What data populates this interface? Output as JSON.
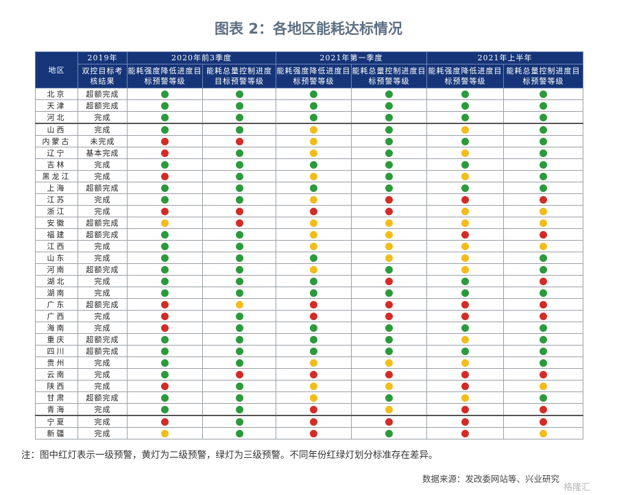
{
  "title": "图表 2：各地区能耗达标情况",
  "colors": {
    "red": "#d32c26",
    "yellow": "#f2bc1b",
    "green": "#2b9a3b",
    "header_bg": "#163578"
  },
  "header": {
    "region": "地区",
    "y2019": "2019年",
    "y2019_sub": "双控目标考核结果",
    "groups": [
      "2020年前3季度",
      "2021年第一季度",
      "2021年上半年"
    ],
    "sub_intensity": "能耗强度降低进度目标预警等级",
    "sub_total": "能耗总量控制进度目标预警等级"
  },
  "chart_data": {
    "type": "table",
    "columns": [
      "地区",
      "2019年双控目标考核结果",
      "2020年前3季度-能耗强度降低进度目标预警等级",
      "2020年前3季度-能耗总量控制进度目标预警等级",
      "2021年第一季度-能耗强度降低进度目标预警等级",
      "2021年第一季度-能耗总量控制进度目标预警等级",
      "2021年上半年-能耗强度降低进度目标预警等级",
      "2021年上半年-能耗总量控制进度目标预警等级"
    ],
    "legend": {
      "r": "红灯（一级预警）",
      "y": "黄灯（二级预警）",
      "g": "绿灯（三级预警）"
    },
    "rows": [
      {
        "region": "北京",
        "result": "超额完成",
        "levels": [
          "g",
          "g",
          "g",
          "g",
          "g",
          "g"
        ]
      },
      {
        "region": "天津",
        "result": "超额完成",
        "levels": [
          "g",
          "g",
          "g",
          "g",
          "g",
          "g"
        ]
      },
      {
        "region": "河北",
        "result": "完成",
        "levels": [
          "g",
          "g",
          "g",
          "g",
          "g",
          "g"
        ]
      },
      {
        "region": "山西",
        "result": "完成",
        "levels": [
          "g",
          "g",
          "y",
          "g",
          "y",
          "g"
        ]
      },
      {
        "region": "内蒙古",
        "result": "未完成",
        "levels": [
          "r",
          "r",
          "y",
          "g",
          "g",
          "g"
        ]
      },
      {
        "region": "辽宁",
        "result": "基本完成",
        "levels": [
          "r",
          "g",
          "y",
          "g",
          "y",
          "g"
        ]
      },
      {
        "region": "吉林",
        "result": "完成",
        "levels": [
          "g",
          "g",
          "g",
          "g",
          "g",
          "g"
        ]
      },
      {
        "region": "黑龙江",
        "result": "完成",
        "levels": [
          "r",
          "g",
          "y",
          "g",
          "y",
          "g"
        ]
      },
      {
        "region": "上海",
        "result": "超额完成",
        "levels": [
          "g",
          "g",
          "g",
          "g",
          "g",
          "g"
        ]
      },
      {
        "region": "江苏",
        "result": "完成",
        "levels": [
          "g",
          "g",
          "y",
          "r",
          "r",
          "r"
        ]
      },
      {
        "region": "浙江",
        "result": "完成",
        "levels": [
          "r",
          "r",
          "r",
          "r",
          "y",
          "y"
        ]
      },
      {
        "region": "安徽",
        "result": "超额完成",
        "levels": [
          "y",
          "r",
          "y",
          "y",
          "y",
          "y"
        ]
      },
      {
        "region": "福建",
        "result": "超额完成",
        "levels": [
          "g",
          "g",
          "y",
          "y",
          "r",
          "r"
        ]
      },
      {
        "region": "江西",
        "result": "完成",
        "levels": [
          "g",
          "g",
          "y",
          "y",
          "y",
          "y"
        ]
      },
      {
        "region": "山东",
        "result": "完成",
        "levels": [
          "g",
          "g",
          "g",
          "y",
          "y",
          "g"
        ]
      },
      {
        "region": "河南",
        "result": "超额完成",
        "levels": [
          "g",
          "g",
          "y",
          "g",
          "y",
          "g"
        ]
      },
      {
        "region": "湖北",
        "result": "完成",
        "levels": [
          "g",
          "g",
          "g",
          "r",
          "g",
          "r"
        ]
      },
      {
        "region": "湖南",
        "result": "完成",
        "levels": [
          "g",
          "g",
          "g",
          "g",
          "g",
          "g"
        ]
      },
      {
        "region": "广东",
        "result": "超额完成",
        "levels": [
          "r",
          "y",
          "r",
          "r",
          "r",
          "r"
        ]
      },
      {
        "region": "广西",
        "result": "完成",
        "levels": [
          "r",
          "g",
          "r",
          "r",
          "r",
          "r"
        ]
      },
      {
        "region": "海南",
        "result": "完成",
        "levels": [
          "r",
          "g",
          "g",
          "g",
          "g",
          "g"
        ]
      },
      {
        "region": "重庆",
        "result": "超额完成",
        "levels": [
          "g",
          "g",
          "g",
          "g",
          "y",
          "g"
        ]
      },
      {
        "region": "四川",
        "result": "超额完成",
        "levels": [
          "g",
          "g",
          "g",
          "g",
          "g",
          "g"
        ]
      },
      {
        "region": "贵州",
        "result": "完成",
        "levels": [
          "g",
          "g",
          "y",
          "y",
          "y",
          "g"
        ]
      },
      {
        "region": "云南",
        "result": "完成",
        "levels": [
          "g",
          "r",
          "r",
          "r",
          "r",
          "r"
        ]
      },
      {
        "region": "陕西",
        "result": "完成",
        "levels": [
          "r",
          "g",
          "y",
          "y",
          "r",
          "y"
        ]
      },
      {
        "region": "甘肃",
        "result": "超额完成",
        "levels": [
          "g",
          "g",
          "y",
          "g",
          "y",
          "g"
        ]
      },
      {
        "region": "青海",
        "result": "完成",
        "levels": [
          "g",
          "g",
          "r",
          "y",
          "r",
          "r"
        ]
      },
      {
        "region": "宁夏",
        "result": "完成",
        "levels": [
          "r",
          "g",
          "r",
          "r",
          "r",
          "r"
        ]
      },
      {
        "region": "新疆",
        "result": "完成",
        "levels": [
          "y",
          "g",
          "r",
          "g",
          "r",
          "y"
        ]
      }
    ]
  },
  "note": "注：图中红灯表示一级预警，黄灯为二级预警，绿灯为三级预警。不同年份红绿灯划分标准存在差异。",
  "source": "数据来源：发改委网站等、兴业研究",
  "watermark": "格隆汇"
}
